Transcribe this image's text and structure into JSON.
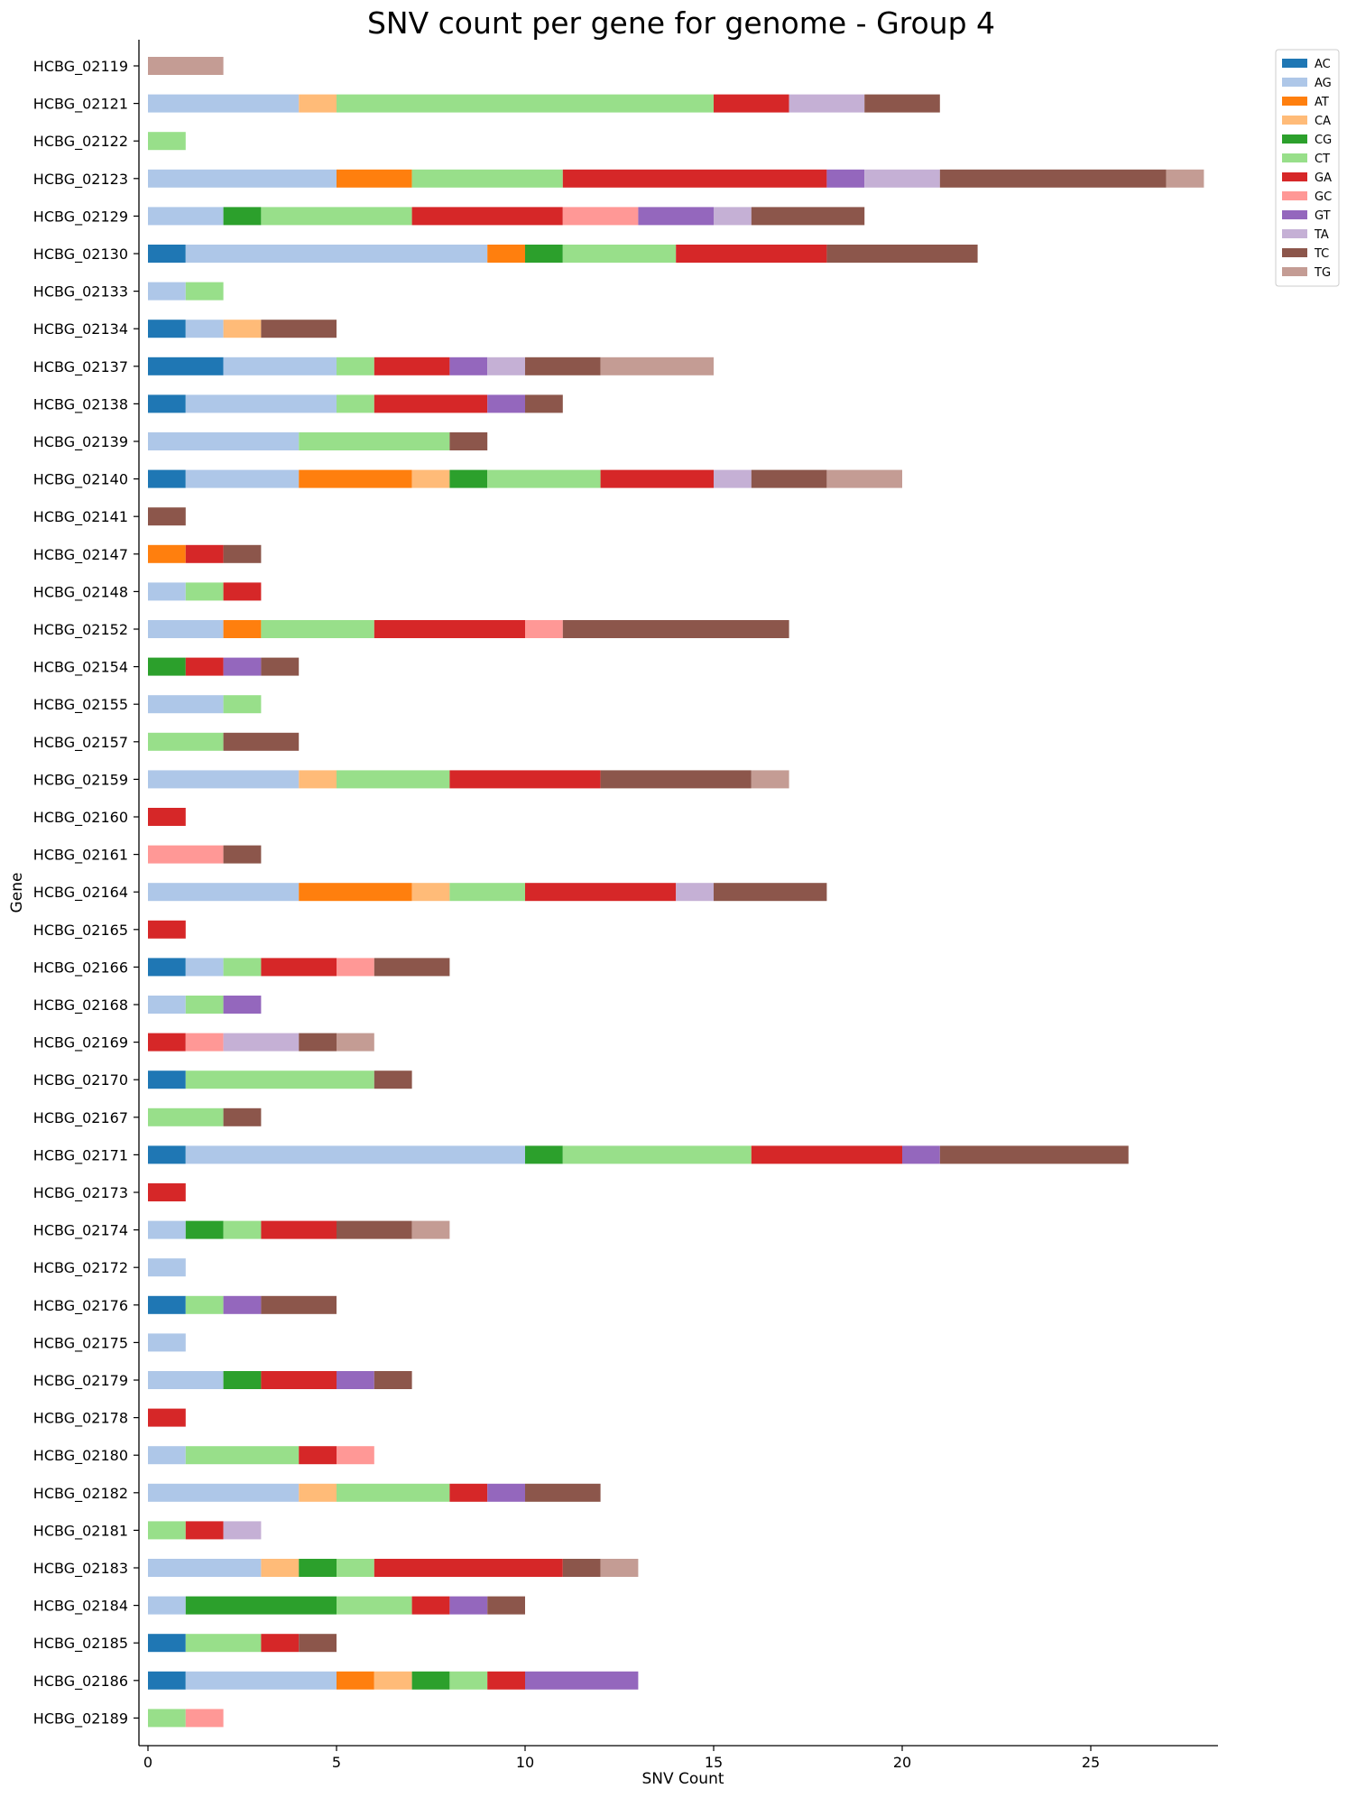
{
  "chart_data": {
    "type": "bar",
    "orientation": "horizontal",
    "stacked": true,
    "title": "SNV count per gene for genome - Group 4",
    "xlabel": "SNV Count",
    "ylabel": "Gene",
    "xlim": [
      0,
      28.4
    ],
    "xticks": [
      0,
      5,
      10,
      15,
      20,
      25
    ],
    "grid": false,
    "legend_position": "top-right",
    "categories": [
      "HCBG_02119",
      "HCBG_02121",
      "HCBG_02122",
      "HCBG_02123",
      "HCBG_02129",
      "HCBG_02130",
      "HCBG_02133",
      "HCBG_02134",
      "HCBG_02137",
      "HCBG_02138",
      "HCBG_02139",
      "HCBG_02140",
      "HCBG_02141",
      "HCBG_02147",
      "HCBG_02148",
      "HCBG_02152",
      "HCBG_02154",
      "HCBG_02155",
      "HCBG_02157",
      "HCBG_02159",
      "HCBG_02160",
      "HCBG_02161",
      "HCBG_02164",
      "HCBG_02165",
      "HCBG_02166",
      "HCBG_02168",
      "HCBG_02169",
      "HCBG_02170",
      "HCBG_02167",
      "HCBG_02171",
      "HCBG_02173",
      "HCBG_02174",
      "HCBG_02172",
      "HCBG_02176",
      "HCBG_02175",
      "HCBG_02179",
      "HCBG_02178",
      "HCBG_02180",
      "HCBG_02182",
      "HCBG_02181",
      "HCBG_02183",
      "HCBG_02184",
      "HCBG_02185",
      "HCBG_02186",
      "HCBG_02189"
    ],
    "series": [
      {
        "name": "AC",
        "color": "#1f77b4",
        "values": [
          0,
          0,
          0,
          0,
          0,
          1,
          0,
          1,
          2,
          1,
          0,
          1,
          0,
          0,
          0,
          0,
          0,
          0,
          0,
          0,
          0,
          0,
          0,
          0,
          1,
          0,
          0,
          1,
          0,
          1,
          0,
          0,
          0,
          1,
          0,
          0,
          0,
          0,
          0,
          0,
          0,
          0,
          1,
          1,
          0
        ]
      },
      {
        "name": "AG",
        "color": "#aec7e8",
        "values": [
          0,
          4,
          0,
          5,
          2,
          8,
          1,
          1,
          3,
          4,
          4,
          3,
          0,
          0,
          1,
          2,
          0,
          2,
          0,
          4,
          0,
          0,
          4,
          0,
          1,
          1,
          0,
          0,
          0,
          9,
          0,
          1,
          1,
          0,
          1,
          2,
          0,
          1,
          4,
          0,
          3,
          1,
          0,
          4,
          0
        ]
      },
      {
        "name": "AT",
        "color": "#ff7f0e",
        "values": [
          0,
          0,
          0,
          2,
          0,
          1,
          0,
          0,
          0,
          0,
          0,
          3,
          0,
          1,
          0,
          1,
          0,
          0,
          0,
          0,
          0,
          0,
          3,
          0,
          0,
          0,
          0,
          0,
          0,
          0,
          0,
          0,
          0,
          0,
          0,
          0,
          0,
          0,
          0,
          0,
          0,
          0,
          0,
          1,
          0
        ]
      },
      {
        "name": "CA",
        "color": "#ffbb78",
        "values": [
          0,
          1,
          0,
          0,
          0,
          0,
          0,
          1,
          0,
          0,
          0,
          1,
          0,
          0,
          0,
          0,
          0,
          0,
          0,
          1,
          0,
          0,
          1,
          0,
          0,
          0,
          0,
          0,
          0,
          0,
          0,
          0,
          0,
          0,
          0,
          0,
          0,
          0,
          1,
          0,
          1,
          0,
          0,
          1,
          0
        ]
      },
      {
        "name": "CG",
        "color": "#2ca02c",
        "values": [
          0,
          0,
          0,
          0,
          1,
          1,
          0,
          0,
          0,
          0,
          0,
          1,
          0,
          0,
          0,
          0,
          1,
          0,
          0,
          0,
          0,
          0,
          0,
          0,
          0,
          0,
          0,
          0,
          0,
          1,
          0,
          1,
          0,
          0,
          0,
          1,
          0,
          0,
          0,
          0,
          1,
          4,
          0,
          1,
          0
        ]
      },
      {
        "name": "CT",
        "color": "#98df8a",
        "values": [
          0,
          10,
          1,
          4,
          4,
          3,
          1,
          0,
          1,
          1,
          4,
          3,
          0,
          0,
          1,
          3,
          0,
          1,
          2,
          3,
          0,
          0,
          2,
          0,
          1,
          1,
          0,
          5,
          2,
          5,
          0,
          1,
          0,
          1,
          0,
          0,
          0,
          3,
          3,
          1,
          1,
          2,
          2,
          1,
          1
        ]
      },
      {
        "name": "GA",
        "color": "#d62728",
        "values": [
          0,
          2,
          0,
          7,
          4,
          4,
          0,
          0,
          2,
          3,
          0,
          3,
          0,
          1,
          1,
          4,
          1,
          0,
          0,
          4,
          1,
          0,
          4,
          1,
          2,
          0,
          1,
          0,
          0,
          4,
          1,
          2,
          0,
          0,
          0,
          2,
          1,
          1,
          1,
          1,
          5,
          1,
          1,
          1,
          0
        ]
      },
      {
        "name": "GC",
        "color": "#ff9896",
        "values": [
          0,
          0,
          0,
          0,
          2,
          0,
          0,
          0,
          0,
          0,
          0,
          0,
          0,
          0,
          0,
          1,
          0,
          0,
          0,
          0,
          0,
          2,
          0,
          0,
          1,
          0,
          1,
          0,
          0,
          0,
          0,
          0,
          0,
          0,
          0,
          0,
          0,
          1,
          0,
          0,
          0,
          0,
          0,
          0,
          1
        ]
      },
      {
        "name": "GT",
        "color": "#9467bd",
        "values": [
          0,
          0,
          0,
          1,
          2,
          0,
          0,
          0,
          1,
          1,
          0,
          0,
          0,
          0,
          0,
          0,
          1,
          0,
          0,
          0,
          0,
          0,
          0,
          0,
          0,
          1,
          0,
          0,
          0,
          1,
          0,
          0,
          0,
          1,
          0,
          1,
          0,
          0,
          1,
          0,
          0,
          1,
          0,
          3,
          0
        ]
      },
      {
        "name": "TA",
        "color": "#c5b0d5",
        "values": [
          0,
          2,
          0,
          2,
          1,
          0,
          0,
          0,
          1,
          0,
          0,
          1,
          0,
          0,
          0,
          0,
          0,
          0,
          0,
          0,
          0,
          0,
          1,
          0,
          0,
          0,
          2,
          0,
          0,
          0,
          0,
          0,
          0,
          0,
          0,
          0,
          0,
          0,
          0,
          1,
          0,
          0,
          0,
          0,
          0
        ]
      },
      {
        "name": "TC",
        "color": "#8c564b",
        "values": [
          0,
          2,
          0,
          6,
          3,
          4,
          0,
          2,
          2,
          1,
          1,
          2,
          1,
          1,
          0,
          6,
          1,
          0,
          2,
          4,
          0,
          1,
          3,
          0,
          2,
          0,
          1,
          1,
          1,
          5,
          0,
          2,
          0,
          2,
          0,
          1,
          0,
          0,
          2,
          0,
          1,
          1,
          1,
          0,
          0
        ]
      },
      {
        "name": "TG",
        "color": "#c49c94",
        "values": [
          2,
          0,
          0,
          1,
          0,
          0,
          0,
          0,
          3,
          0,
          0,
          2,
          0,
          0,
          0,
          0,
          0,
          0,
          0,
          1,
          0,
          0,
          0,
          0,
          0,
          0,
          1,
          0,
          0,
          0,
          0,
          1,
          0,
          0,
          0,
          0,
          0,
          0,
          0,
          0,
          1,
          0,
          0,
          0,
          0
        ]
      }
    ]
  }
}
